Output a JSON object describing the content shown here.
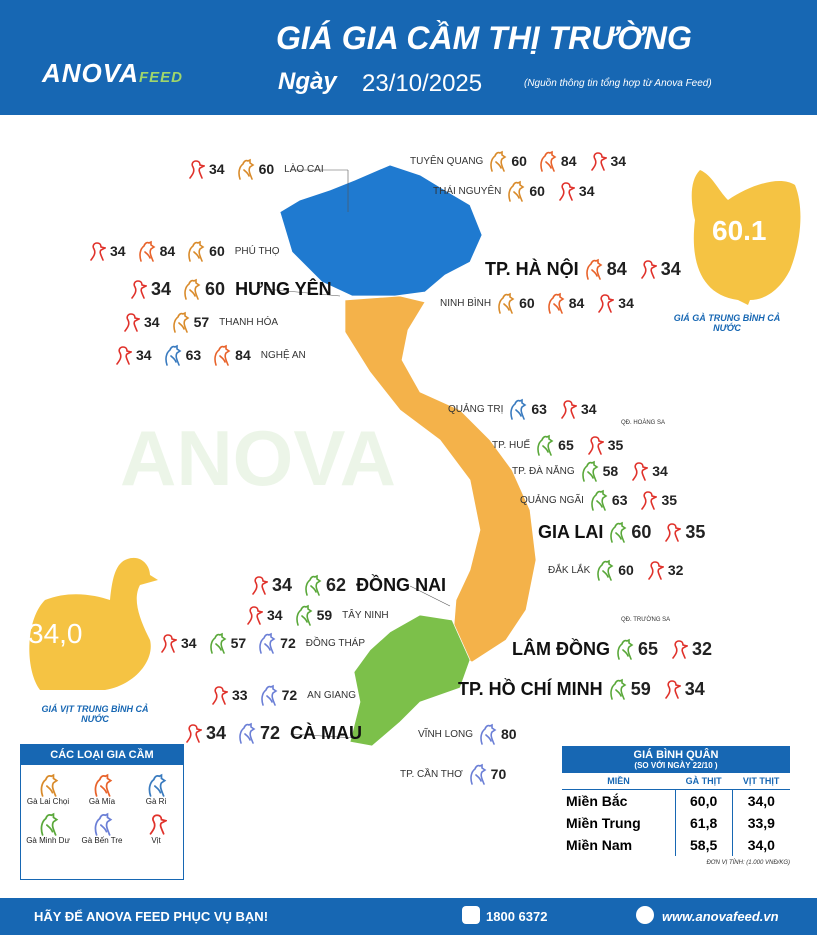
{
  "header": {
    "logo": {
      "brand": "ANOVA",
      "suffix": "FEED"
    },
    "title": "GIÁ GIA CẦM THỊ TRƯỜNG",
    "date_label": "Ngày",
    "date": "23/10/2025",
    "source": "(Nguồn thông tin tổng hợp từ Anova Feed)"
  },
  "provinces": [
    {
      "name": "LÀO CAI",
      "prices": [
        {
          "kind": "Vịt",
          "value": 34
        },
        {
          "kind": "Gà Lai Chọi",
          "value": 60
        }
      ]
    },
    {
      "name": "TUYÊN QUANG",
      "prices": [
        {
          "kind": "Gà Lai Chọi",
          "value": 60
        },
        {
          "kind": "Gà Mía",
          "value": 84
        },
        {
          "kind": "Vịt",
          "value": 34
        }
      ]
    },
    {
      "name": "THÁI NGUYÊN",
      "prices": [
        {
          "kind": "Gà Lai Chọi",
          "value": 60
        },
        {
          "kind": "Vịt",
          "value": 34
        }
      ]
    },
    {
      "name": "PHÚ THỌ",
      "prices": [
        {
          "kind": "Vịt",
          "value": 34
        },
        {
          "kind": "Gà Mía",
          "value": 84
        },
        {
          "kind": "Gà Lai Chọi",
          "value": 60
        }
      ]
    },
    {
      "name": "TP. HÀ NỘI",
      "prices": [
        {
          "kind": "Gà Mía",
          "value": 84
        },
        {
          "kind": "Vịt",
          "value": 34
        }
      ]
    },
    {
      "name": "HƯNG YÊN",
      "prices": [
        {
          "kind": "Vịt",
          "value": 34
        },
        {
          "kind": "Gà Lai Chọi",
          "value": 60
        }
      ]
    },
    {
      "name": "NINH BÌNH",
      "prices": [
        {
          "kind": "Gà Lai Chọi",
          "value": 60
        },
        {
          "kind": "Gà Mía",
          "value": 84
        },
        {
          "kind": "Vịt",
          "value": 34
        }
      ]
    },
    {
      "name": "THANH HÓA",
      "prices": [
        {
          "kind": "Vịt",
          "value": 34
        },
        {
          "kind": "Gà Lai Chọi",
          "value": 57
        }
      ]
    },
    {
      "name": "NGHỆ AN",
      "prices": [
        {
          "kind": "Vịt",
          "value": 34
        },
        {
          "kind": "Gà Ri",
          "value": 63
        },
        {
          "kind": "Gà Mía",
          "value": 84
        }
      ]
    },
    {
      "name": "QUẢNG TRỊ",
      "prices": [
        {
          "kind": "Gà Ri",
          "value": 63
        },
        {
          "kind": "Vịt",
          "value": 34
        }
      ]
    },
    {
      "name": "TP. HUẾ",
      "prices": [
        {
          "kind": "Gà Minh Dư",
          "value": 65
        },
        {
          "kind": "Vịt",
          "value": 35
        }
      ]
    },
    {
      "name": "TP. ĐÀ NẴNG",
      "prices": [
        {
          "kind": "Gà Minh Dư",
          "value": 58
        },
        {
          "kind": "Vịt",
          "value": 34
        }
      ]
    },
    {
      "name": "QUẢNG NGÃI",
      "prices": [
        {
          "kind": "Gà Minh Dư",
          "value": 63
        },
        {
          "kind": "Vịt",
          "value": 35
        }
      ]
    },
    {
      "name": "GIA LAI",
      "prices": [
        {
          "kind": "Gà Minh Dư",
          "value": 60
        },
        {
          "kind": "Vịt",
          "value": 35
        }
      ]
    },
    {
      "name": "ĐẮK LẮK",
      "prices": [
        {
          "kind": "Gà Minh Dư",
          "value": 60
        },
        {
          "kind": "Vịt",
          "value": 32
        }
      ]
    },
    {
      "name": "ĐỒNG NAI",
      "prices": [
        {
          "kind": "Vịt",
          "value": 34
        },
        {
          "kind": "Gà Minh Dư",
          "value": 62
        }
      ]
    },
    {
      "name": "TÂY NINH",
      "prices": [
        {
          "kind": "Vịt",
          "value": 34
        },
        {
          "kind": "Gà Minh Dư",
          "value": 59
        }
      ]
    },
    {
      "name": "ĐỒNG THÁP",
      "prices": [
        {
          "kind": "Vịt",
          "value": 34
        },
        {
          "kind": "Gà Minh Dư",
          "value": 57
        },
        {
          "kind": "Gà Bến Tre",
          "value": 72
        }
      ]
    },
    {
      "name": "LÂM ĐỒNG",
      "prices": [
        {
          "kind": "Gà Minh Dư",
          "value": 65
        },
        {
          "kind": "Vịt",
          "value": 32
        }
      ]
    },
    {
      "name": "TP. HỒ CHÍ MINH",
      "prices": [
        {
          "kind": "Gà Minh Dư",
          "value": 59
        },
        {
          "kind": "Vịt",
          "value": 34
        }
      ]
    },
    {
      "name": "AN GIANG",
      "prices": [
        {
          "kind": "Vịt",
          "value": 33
        },
        {
          "kind": "Gà Bến Tre",
          "value": 72
        }
      ]
    },
    {
      "name": "CÀ MAU",
      "prices": [
        {
          "kind": "Vịt",
          "value": 34
        },
        {
          "kind": "Gà Bến Tre",
          "value": 72
        }
      ]
    },
    {
      "name": "VĨNH LONG",
      "prices": [
        {
          "kind": "Gà Bến Tre",
          "value": 80
        }
      ]
    },
    {
      "name": "TP. CẦN THƠ",
      "prices": [
        {
          "kind": "Gà Bến Tre",
          "value": 70
        }
      ]
    }
  ],
  "islands": [
    "QĐ. HOÀNG SA",
    "QĐ. TRƯỜNG SA"
  ],
  "chicken_average": {
    "value": "60.1",
    "label": "GIÁ GÀ TRUNG BÌNH CẢ NƯỚC"
  },
  "duck_average": {
    "value": "34,0",
    "label": "GIÁ VỊT TRUNG BÌNH CẢ NƯỚC"
  },
  "legend": {
    "title": "CÁC LOẠI GIA CẦM",
    "items": [
      {
        "name": "Gà Lai Chọi",
        "color": "#d98b2b"
      },
      {
        "name": "Gà Mía",
        "color": "#e8632b"
      },
      {
        "name": "Gà Ri",
        "color": "#3a7bbf"
      },
      {
        "name": "Gà Minh Dư",
        "color": "#5aa83a"
      },
      {
        "name": "Gà Bến Tre",
        "color": "#6b7fd6"
      },
      {
        "name": "Vịt",
        "color": "#e0322b"
      }
    ]
  },
  "table": {
    "title": "GIÁ BÌNH QUÂN",
    "subtitle": "(SO VỚI NGÀY  22/10    )",
    "columns": [
      "MIỀN",
      "GÀ THỊT",
      "VỊT THỊT"
    ],
    "rows": [
      [
        "Miền Bắc",
        "60,0",
        "34,0"
      ],
      [
        "Miền Trung",
        "61,8",
        "33,9"
      ],
      [
        "Miền Nam",
        "58,5",
        "34,0"
      ]
    ],
    "note": "ĐƠN VỊ TÍNH: (1.000 VNĐ/KG)"
  },
  "footer": {
    "slogan": "HÃY ĐỂ ANOVA FEED PHỤC VỤ BẠN!",
    "phone": "1800 6372",
    "website": "www.anovafeed.vn"
  }
}
